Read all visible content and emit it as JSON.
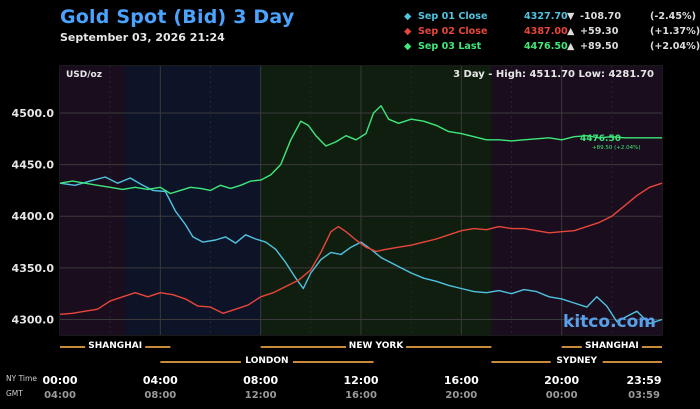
{
  "header": {
    "title": "Gold Spot (Bid) 3 Day",
    "date": "September 03, 2026 21:24"
  },
  "legend": [
    {
      "label": "Sep 01 Close",
      "value": "4327.70",
      "arrow": "▼",
      "change": "-108.70",
      "percent": "(-2.45%)",
      "color": "#4fc3e0"
    },
    {
      "label": "Sep 02 Close",
      "value": "4387.00",
      "arrow": "▲",
      "change": "+59.30",
      "percent": "(+1.37%)",
      "color": "#e8463a"
    },
    {
      "label": "Sep 03 Last",
      "value": "4476.50",
      "arrow": "▲",
      "change": "+89.50",
      "percent": "(+2.04%)",
      "color": "#3ee87a"
    }
  ],
  "chart_info": {
    "unit": "USD/oz",
    "high_low": "3 Day - High: 4511.70  Low: 4281.70",
    "last_label": "4476.50",
    "last_sub": "+89.50 (+2.04%)",
    "watermark": "kitco.com"
  },
  "sessions": {
    "row1": [
      "SHANGHAI",
      "NEW YORK",
      "SHANGHAI"
    ],
    "row2": [
      "LONDON",
      "SYDNEY"
    ]
  },
  "time_axes": {
    "ny_label": "NY Time",
    "gmt_label": "GMT",
    "ny_ticks": [
      "00:00",
      "04:00",
      "08:00",
      "12:00",
      "16:00",
      "20:00",
      "23:59"
    ],
    "gmt_ticks": [
      "04:00",
      "08:00",
      "12:00",
      "16:00",
      "20:00",
      "00:00",
      "03:59"
    ]
  },
  "chart_data": {
    "type": "line",
    "title": "Gold Spot (Bid) 3 Day",
    "ylabel": "USD/oz",
    "ylim": [
      4285,
      4530
    ],
    "yticks": [
      4300.0,
      4350.0,
      4400.0,
      4450.0,
      4500.0
    ],
    "xlim": [
      0,
      24
    ],
    "grid": true,
    "legend_position": "top-right",
    "series": [
      {
        "name": "Sep 01 Close",
        "color": "#4fc3e0",
        "points": [
          [
            0,
            4432
          ],
          [
            0.6,
            4430
          ],
          [
            1.2,
            4434
          ],
          [
            1.8,
            4438
          ],
          [
            2.3,
            4432
          ],
          [
            2.8,
            4437
          ],
          [
            3.3,
            4430
          ],
          [
            3.7,
            4425
          ],
          [
            4.2,
            4424
          ],
          [
            4.6,
            4405
          ],
          [
            5,
            4392
          ],
          [
            5.3,
            4380
          ],
          [
            5.7,
            4375
          ],
          [
            6.2,
            4377
          ],
          [
            6.6,
            4380
          ],
          [
            7,
            4374
          ],
          [
            7.4,
            4382
          ],
          [
            7.8,
            4378
          ],
          [
            8.2,
            4375
          ],
          [
            8.6,
            4368
          ],
          [
            9,
            4355
          ],
          [
            9.4,
            4340
          ],
          [
            9.7,
            4330
          ],
          [
            10,
            4345
          ],
          [
            10.4,
            4358
          ],
          [
            10.8,
            4365
          ],
          [
            11.2,
            4363
          ],
          [
            11.6,
            4370
          ],
          [
            12,
            4375
          ],
          [
            12.4,
            4368
          ],
          [
            12.8,
            4360
          ],
          [
            13.2,
            4355
          ],
          [
            13.6,
            4350
          ],
          [
            14,
            4345
          ],
          [
            14.5,
            4340
          ],
          [
            15,
            4337
          ],
          [
            15.5,
            4333
          ],
          [
            16,
            4330
          ],
          [
            16.5,
            4327
          ],
          [
            17,
            4326
          ],
          [
            17.5,
            4328
          ],
          [
            18,
            4325
          ],
          [
            18.5,
            4329
          ],
          [
            19,
            4327
          ],
          [
            19.5,
            4322
          ],
          [
            20,
            4320
          ],
          [
            20.5,
            4316
          ],
          [
            21,
            4312
          ],
          [
            21.4,
            4322
          ],
          [
            21.8,
            4313
          ],
          [
            22.2,
            4298
          ],
          [
            22.6,
            4303
          ],
          [
            23,
            4308
          ],
          [
            23.5,
            4296
          ],
          [
            24,
            4300
          ]
        ]
      },
      {
        "name": "Sep 02 Close",
        "color": "#e8463a",
        "points": [
          [
            0,
            4305
          ],
          [
            0.5,
            4306
          ],
          [
            1,
            4308
          ],
          [
            1.5,
            4310
          ],
          [
            2,
            4318
          ],
          [
            2.5,
            4322
          ],
          [
            3,
            4326
          ],
          [
            3.5,
            4322
          ],
          [
            4,
            4326
          ],
          [
            4.5,
            4324
          ],
          [
            5,
            4320
          ],
          [
            5.5,
            4313
          ],
          [
            6,
            4312
          ],
          [
            6.5,
            4306
          ],
          [
            7,
            4310
          ],
          [
            7.5,
            4314
          ],
          [
            8,
            4322
          ],
          [
            8.5,
            4326
          ],
          [
            9,
            4332
          ],
          [
            9.5,
            4338
          ],
          [
            10,
            4348
          ],
          [
            10.4,
            4365
          ],
          [
            10.8,
            4385
          ],
          [
            11.1,
            4390
          ],
          [
            11.4,
            4385
          ],
          [
            11.8,
            4377
          ],
          [
            12.2,
            4370
          ],
          [
            12.6,
            4366
          ],
          [
            13,
            4368
          ],
          [
            13.5,
            4370
          ],
          [
            14,
            4372
          ],
          [
            14.5,
            4375
          ],
          [
            15,
            4378
          ],
          [
            15.5,
            4382
          ],
          [
            16,
            4386
          ],
          [
            16.5,
            4388
          ],
          [
            17,
            4387
          ],
          [
            17.5,
            4390
          ],
          [
            18,
            4388
          ],
          [
            18.5,
            4388
          ],
          [
            19,
            4386
          ],
          [
            19.5,
            4384
          ],
          [
            20,
            4385
          ],
          [
            20.5,
            4386
          ],
          [
            21,
            4390
          ],
          [
            21.5,
            4394
          ],
          [
            22,
            4400
          ],
          [
            22.5,
            4410
          ],
          [
            23,
            4420
          ],
          [
            23.5,
            4428
          ],
          [
            24,
            4432
          ]
        ]
      },
      {
        "name": "Sep 03 Last",
        "color": "#3ee87a",
        "points": [
          [
            0,
            4432
          ],
          [
            0.5,
            4434
          ],
          [
            1,
            4432
          ],
          [
            1.5,
            4430
          ],
          [
            2,
            4428
          ],
          [
            2.5,
            4426
          ],
          [
            3,
            4428
          ],
          [
            3.5,
            4426
          ],
          [
            4,
            4428
          ],
          [
            4.4,
            4422
          ],
          [
            4.8,
            4425
          ],
          [
            5.2,
            4428
          ],
          [
            5.6,
            4427
          ],
          [
            6,
            4425
          ],
          [
            6.4,
            4430
          ],
          [
            6.8,
            4427
          ],
          [
            7.2,
            4430
          ],
          [
            7.6,
            4434
          ],
          [
            8,
            4435
          ],
          [
            8.4,
            4440
          ],
          [
            8.8,
            4450
          ],
          [
            9.2,
            4474
          ],
          [
            9.6,
            4492
          ],
          [
            9.9,
            4488
          ],
          [
            10.2,
            4478
          ],
          [
            10.6,
            4468
          ],
          [
            11,
            4472
          ],
          [
            11.4,
            4478
          ],
          [
            11.8,
            4474
          ],
          [
            12.2,
            4480
          ],
          [
            12.5,
            4500
          ],
          [
            12.8,
            4507
          ],
          [
            13.1,
            4494
          ],
          [
            13.5,
            4490
          ],
          [
            14,
            4494
          ],
          [
            14.5,
            4492
          ],
          [
            15,
            4488
          ],
          [
            15.5,
            4482
          ],
          [
            16,
            4480
          ],
          [
            16.5,
            4477
          ],
          [
            17,
            4474
          ],
          [
            17.5,
            4474
          ],
          [
            18,
            4473
          ],
          [
            18.5,
            4474
          ],
          [
            19,
            4475
          ],
          [
            19.5,
            4476
          ],
          [
            20,
            4474
          ],
          [
            20.5,
            4477
          ],
          [
            21,
            4478
          ],
          [
            21.5,
            4476
          ],
          [
            22,
            4477
          ],
          [
            22.5,
            4476
          ],
          [
            23,
            4476
          ],
          [
            24,
            4476
          ]
        ]
      }
    ]
  }
}
